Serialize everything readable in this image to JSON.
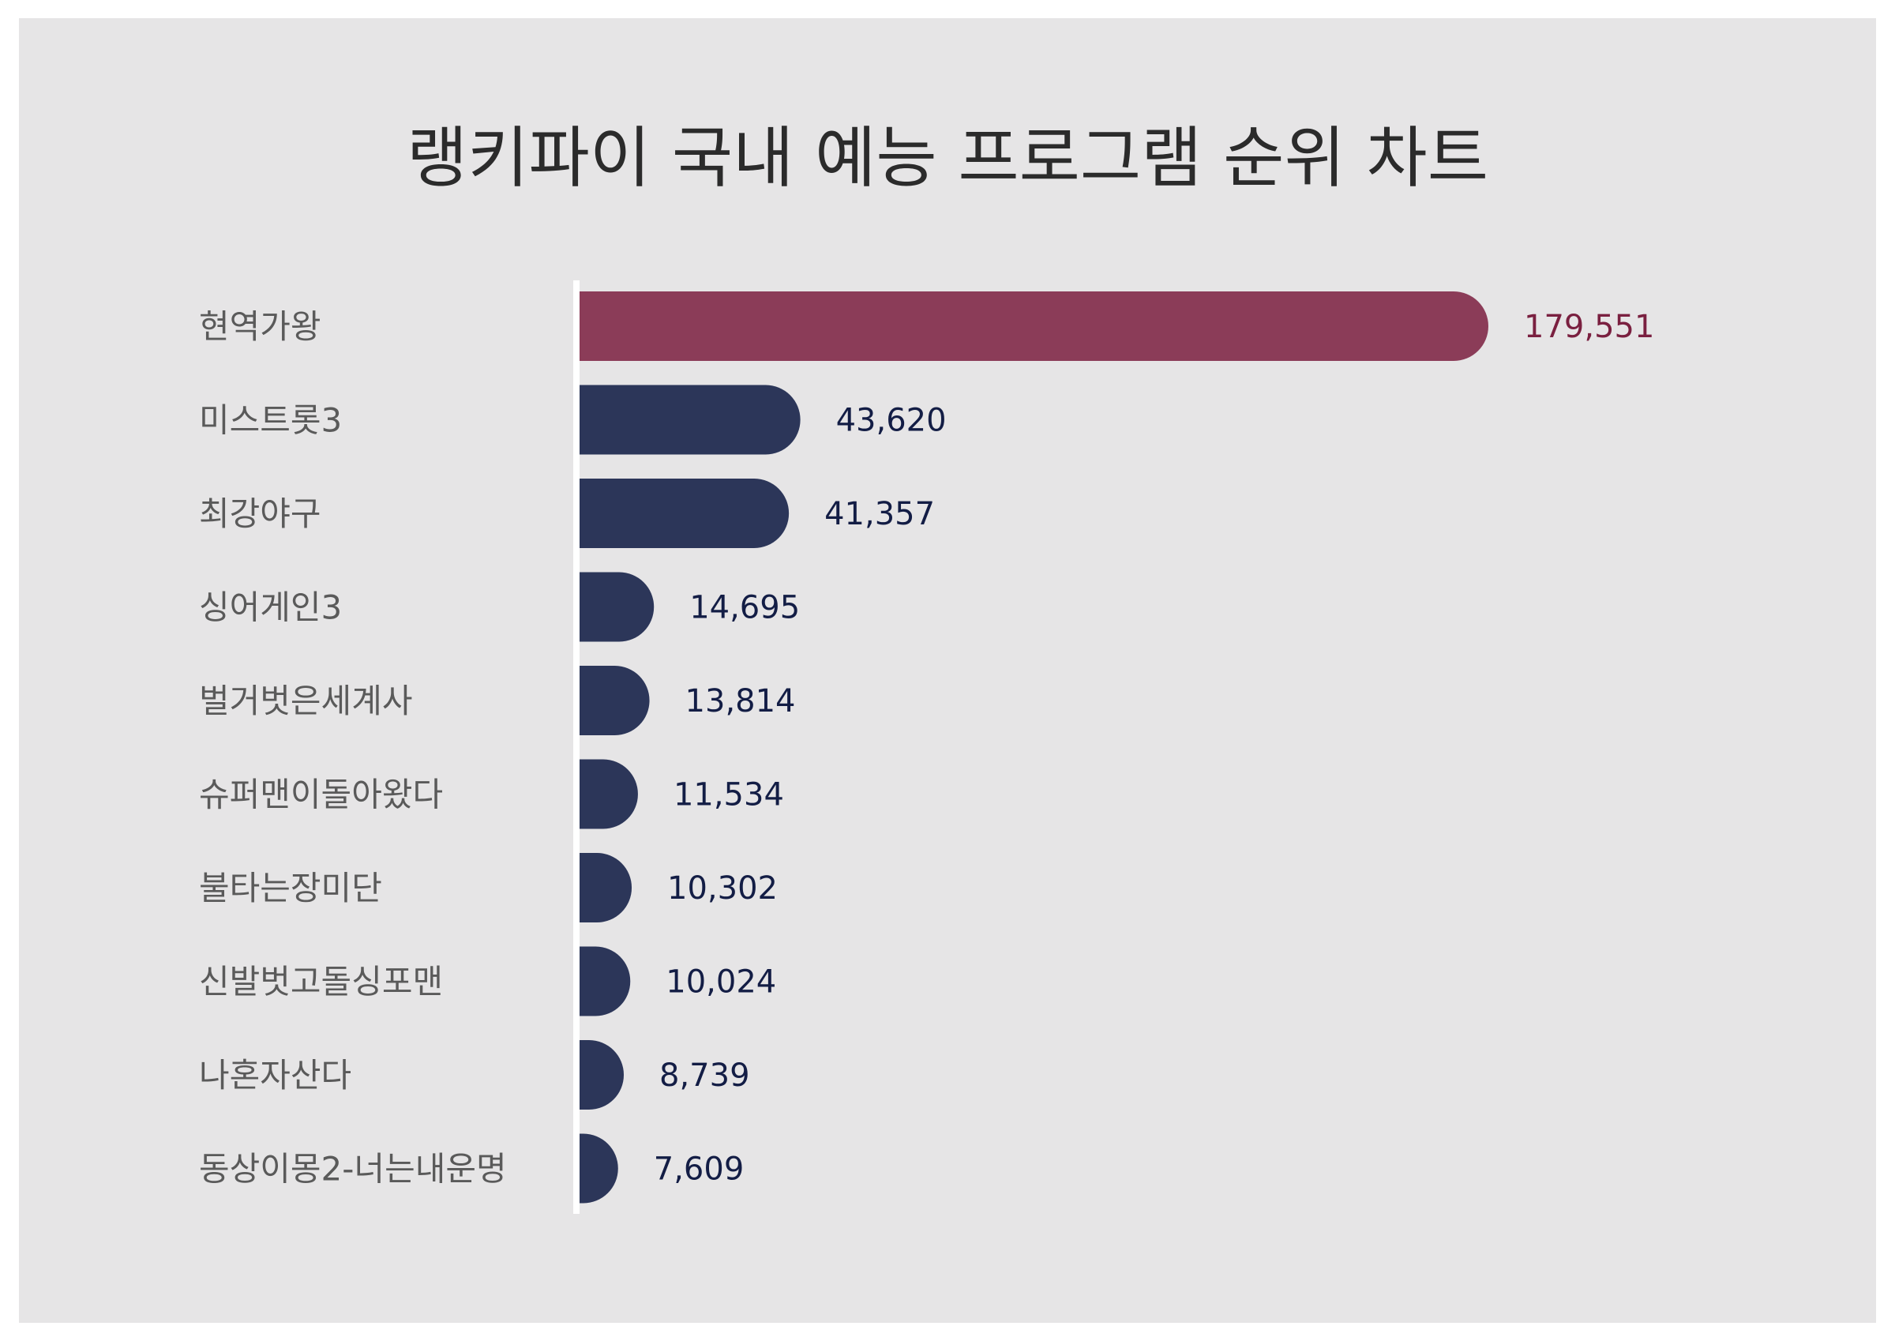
{
  "chart_data": {
    "type": "bar",
    "orientation": "horizontal",
    "title": "랭키파이 국내 예능 프로그램 순위 차트",
    "categories": [
      "현역가왕",
      "미스트롯3",
      "최강야구",
      "싱어게인3",
      "벌거벗은세계사",
      "슈퍼맨이돌아왔다",
      "불타는장미단",
      "신발벗고돌싱포맨",
      "나혼자산다",
      "동상이몽2-너는내운명"
    ],
    "values": [
      179551,
      43620,
      41357,
      14695,
      13814,
      11534,
      10302,
      10024,
      8739,
      7609
    ],
    "value_labels": [
      "179,551",
      "43,620",
      "41,357",
      "14,695",
      "13,814",
      "11,534",
      "10,302",
      "10,024",
      "8,739",
      "7,609"
    ],
    "xlim": [
      0,
      179551
    ],
    "grid": false,
    "colors": {
      "highlight_bar": "#8b3c58",
      "bar": "#2c3659",
      "highlight_label": "#7a2040",
      "label": "#131d45",
      "axis": "#ffffff",
      "background": "#e6e5e6"
    }
  }
}
